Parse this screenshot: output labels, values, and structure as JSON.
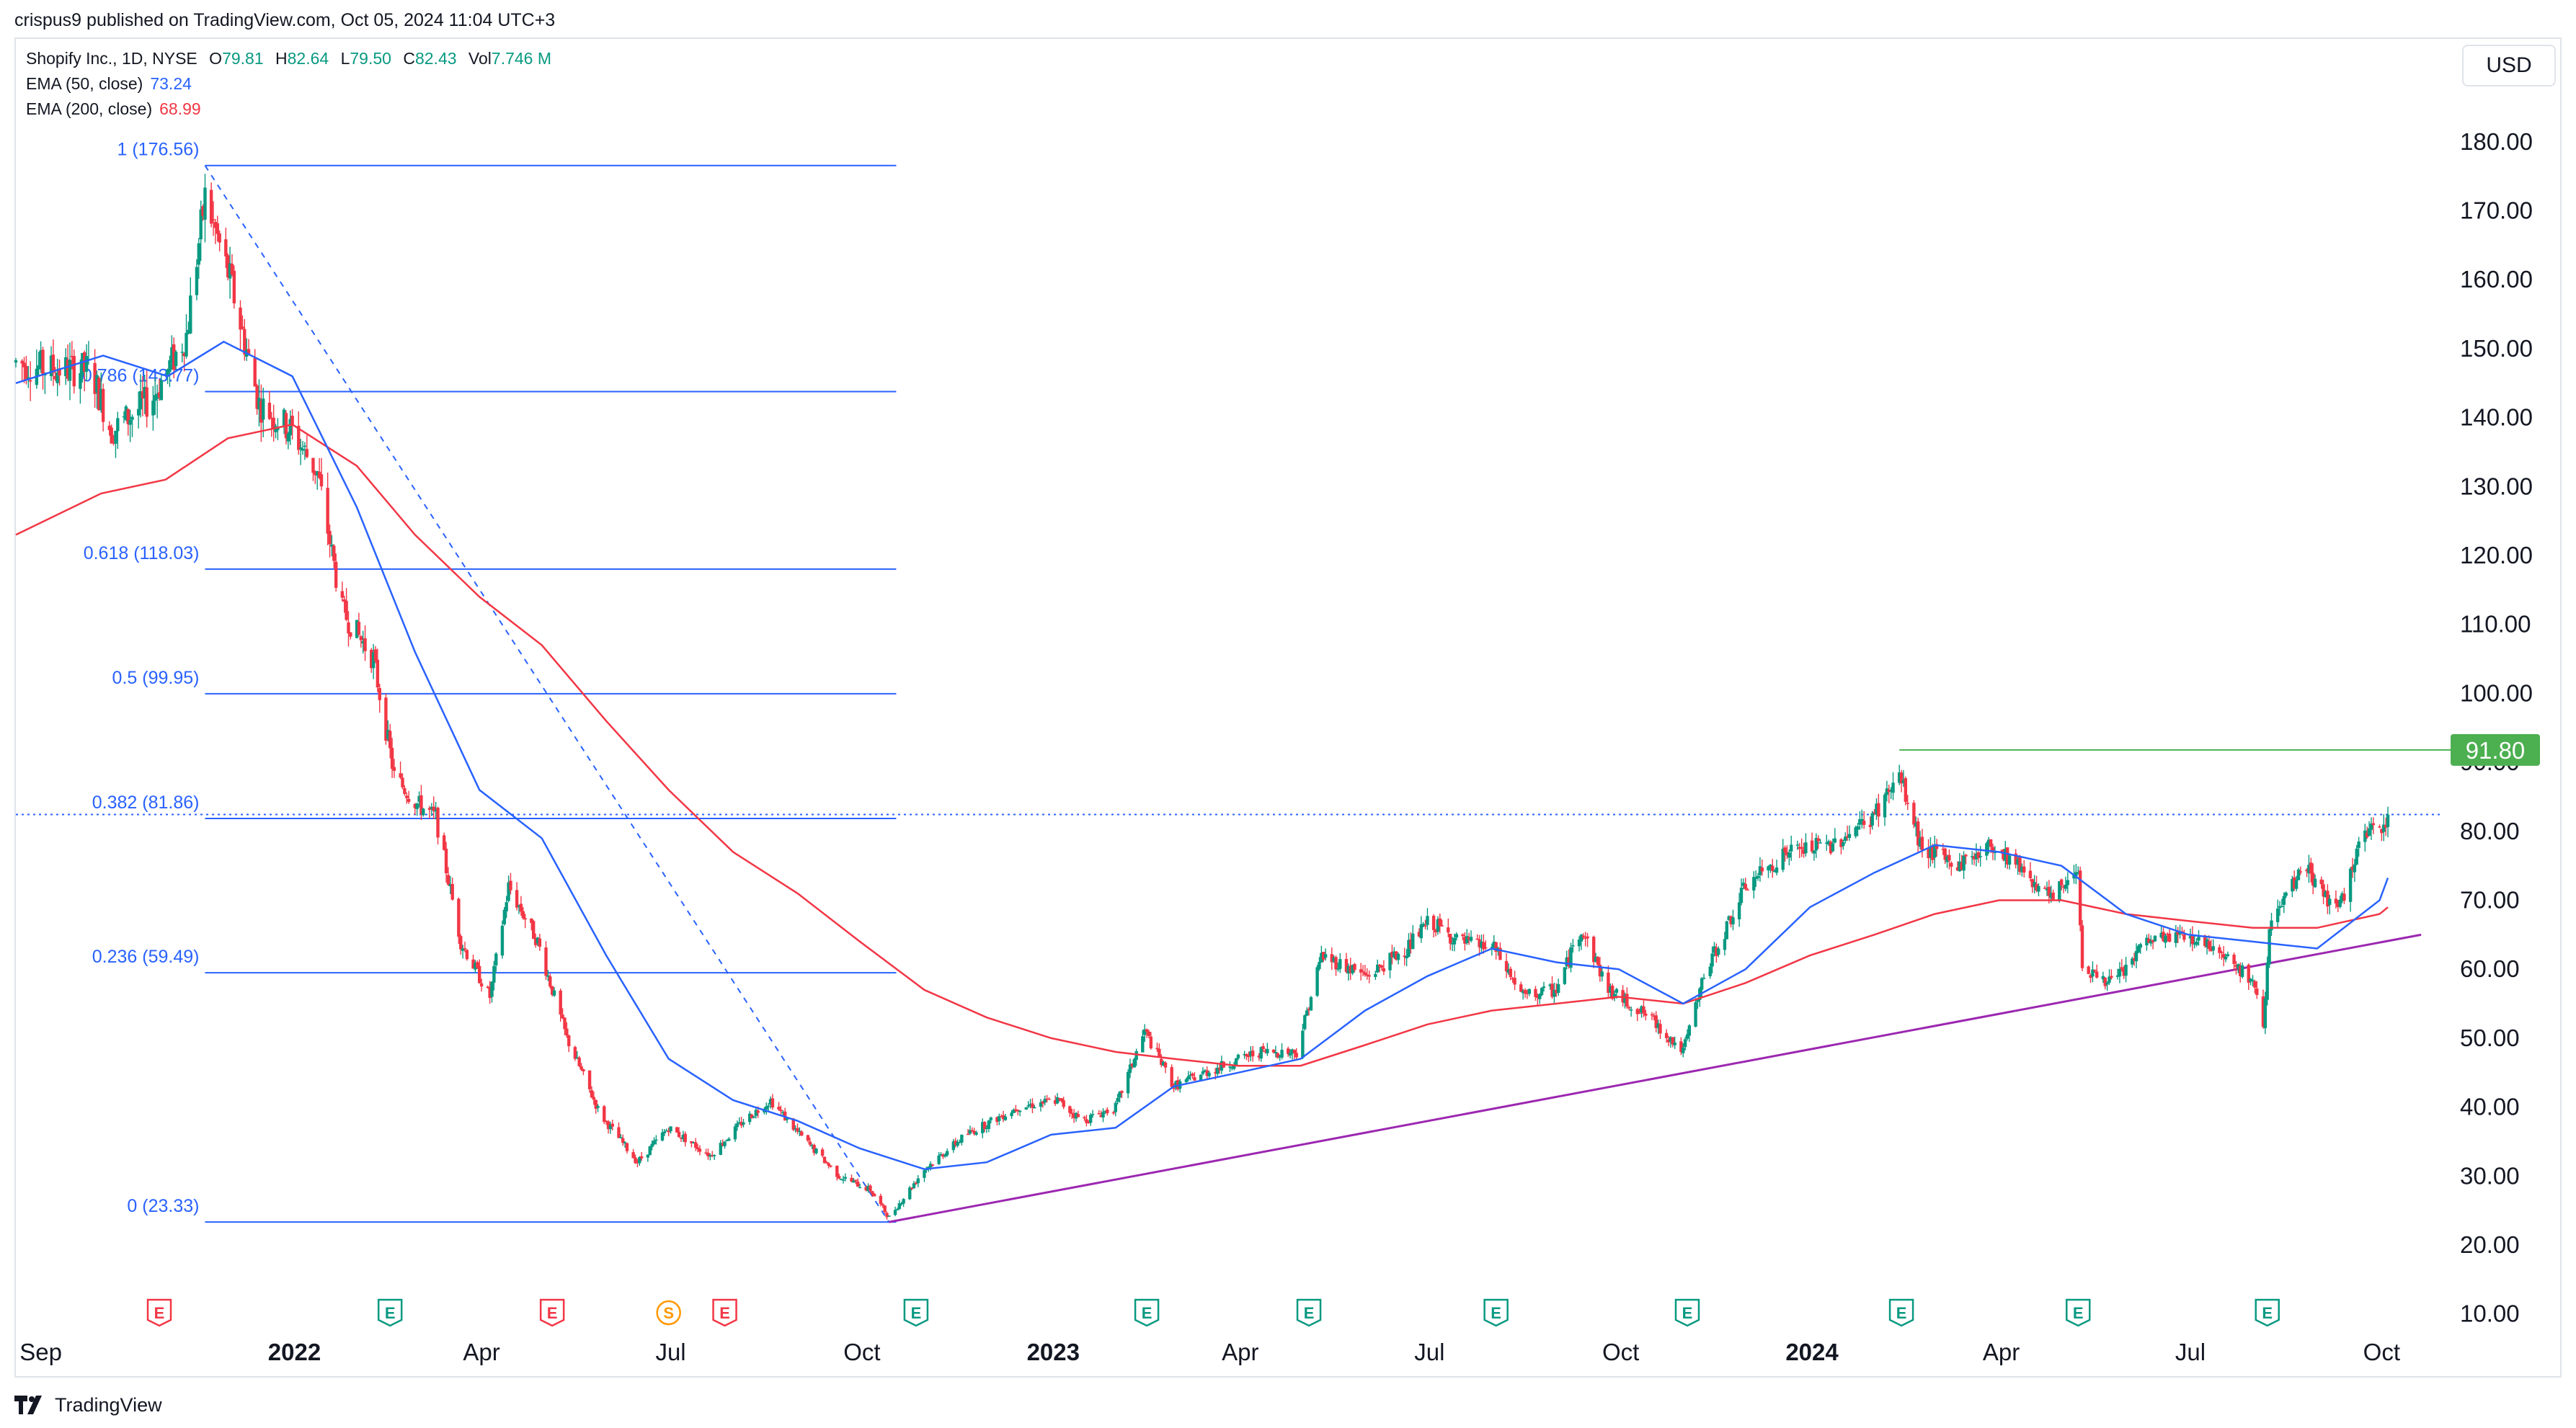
{
  "header": {
    "published": "crispus9 published on TradingView.com, Oct 05, 2024 11:04 UTC+3"
  },
  "legend": {
    "symbol": "Shopify Inc., 1D, NYSE",
    "ohlc": [
      {
        "k": "O",
        "v": "79.81"
      },
      {
        "k": "H",
        "v": "82.64"
      },
      {
        "k": "L",
        "v": "79.50"
      },
      {
        "k": "C",
        "v": "82.43"
      },
      {
        "k": "Vol",
        "v": "7.746 M"
      }
    ],
    "ema50": {
      "label": "EMA (50, close)",
      "value": "73.24"
    },
    "ema200": {
      "label": "EMA (200, close)",
      "value": "68.99"
    }
  },
  "currency_button": "USD",
  "footer": {
    "brand": "TradingView"
  },
  "colors": {
    "candle_up": "#089981",
    "candle_down": "#f23645",
    "ema50": "#2962ff",
    "ema200": "#f23645",
    "fib": "#2962ff",
    "trendline": "#9c27b0",
    "resistance": "#4caf50",
    "price_label_bg": "#4caf50"
  },
  "chart_data": {
    "type": "candlestick",
    "x_range": [
      "2021-08-20",
      "2024-10-30"
    ],
    "ylim": [
      10,
      190
    ],
    "y_ticks": [
      "180.00",
      "170.00",
      "160.00",
      "150.00",
      "140.00",
      "130.00",
      "120.00",
      "110.00",
      "100.00",
      "90.00",
      "80.00",
      "70.00",
      "60.00",
      "50.00",
      "40.00",
      "30.00",
      "20.00",
      "10.00"
    ],
    "x_ticks": [
      {
        "date": "2021-09-01",
        "label": "Sep",
        "bold": false
      },
      {
        "date": "2022-01-01",
        "label": "2022",
        "bold": true
      },
      {
        "date": "2022-04-01",
        "label": "Apr",
        "bold": false
      },
      {
        "date": "2022-07-01",
        "label": "Jul",
        "bold": false
      },
      {
        "date": "2022-10-01",
        "label": "Oct",
        "bold": false
      },
      {
        "date": "2023-01-01",
        "label": "2023",
        "bold": true
      },
      {
        "date": "2023-04-01",
        "label": "Apr",
        "bold": false
      },
      {
        "date": "2023-07-01",
        "label": "Jul",
        "bold": false
      },
      {
        "date": "2023-10-01",
        "label": "Oct",
        "bold": false
      },
      {
        "date": "2024-01-01",
        "label": "2024",
        "bold": true
      },
      {
        "date": "2024-04-01",
        "label": "Apr",
        "bold": false
      },
      {
        "date": "2024-07-01",
        "label": "Jul",
        "bold": false
      },
      {
        "date": "2024-10-01",
        "label": "Oct",
        "bold": false
      }
    ],
    "price_path": [
      [
        "2021-08-20",
        148
      ],
      [
        "2021-09-05",
        147
      ],
      [
        "2021-09-25",
        147
      ],
      [
        "2021-10-05",
        138
      ],
      [
        "2021-10-25",
        143
      ],
      [
        "2021-11-10",
        152
      ],
      [
        "2021-11-19",
        172
      ],
      [
        "2021-12-01",
        160
      ],
      [
        "2021-12-15",
        142
      ],
      [
        "2021-12-31",
        138
      ],
      [
        "2022-01-12",
        132
      ],
      [
        "2022-01-24",
        112
      ],
      [
        "2022-02-08",
        105
      ],
      [
        "2022-02-18",
        88
      ],
      [
        "2022-03-01",
        84
      ],
      [
        "2022-03-10",
        82
      ],
      [
        "2022-03-22",
        64
      ],
      [
        "2022-04-05",
        56
      ],
      [
        "2022-04-14",
        72
      ],
      [
        "2022-04-28",
        64
      ],
      [
        "2022-05-12",
        50
      ],
      [
        "2022-05-28",
        39
      ],
      [
        "2022-06-15",
        32
      ],
      [
        "2022-06-30",
        37
      ],
      [
        "2022-07-20",
        33
      ],
      [
        "2022-08-05",
        38
      ],
      [
        "2022-08-18",
        41
      ],
      [
        "2022-09-01",
        36
      ],
      [
        "2022-09-20",
        30
      ],
      [
        "2022-10-05",
        28
      ],
      [
        "2022-10-14",
        24
      ],
      [
        "2022-10-31",
        31
      ],
      [
        "2022-11-20",
        36
      ],
      [
        "2022-12-15",
        40
      ],
      [
        "2023-01-03",
        41
      ],
      [
        "2023-01-15",
        38
      ],
      [
        "2023-01-31",
        40
      ],
      [
        "2023-02-14",
        51
      ],
      [
        "2023-02-28",
        43
      ],
      [
        "2023-03-15",
        45
      ],
      [
        "2023-04-10",
        48
      ],
      [
        "2023-04-28",
        48
      ],
      [
        "2023-05-10",
        62
      ],
      [
        "2023-06-01",
        59
      ],
      [
        "2023-06-20",
        63
      ],
      [
        "2023-07-01",
        67
      ],
      [
        "2023-07-15",
        64
      ],
      [
        "2023-08-01",
        63
      ],
      [
        "2023-08-15",
        56
      ],
      [
        "2023-08-31",
        57
      ],
      [
        "2023-09-12",
        66
      ],
      [
        "2023-09-25",
        57
      ],
      [
        "2023-10-15",
        53
      ],
      [
        "2023-10-31",
        48
      ],
      [
        "2023-11-10",
        59
      ],
      [
        "2023-11-30",
        72
      ],
      [
        "2023-12-20",
        77
      ],
      [
        "2024-01-10",
        78
      ],
      [
        "2024-01-30",
        82
      ],
      [
        "2024-02-12",
        88
      ],
      [
        "2024-02-22",
        78
      ],
      [
        "2024-03-10",
        75
      ],
      [
        "2024-03-28",
        78
      ],
      [
        "2024-04-10",
        75
      ],
      [
        "2024-04-25",
        70
      ],
      [
        "2024-05-08",
        75
      ],
      [
        "2024-05-10",
        60
      ],
      [
        "2024-05-25",
        58
      ],
      [
        "2024-06-10",
        64
      ],
      [
        "2024-06-28",
        65
      ],
      [
        "2024-07-15",
        63
      ],
      [
        "2024-07-31",
        58
      ],
      [
        "2024-08-05",
        52
      ],
      [
        "2024-08-08",
        66
      ],
      [
        "2024-08-25",
        75
      ],
      [
        "2024-09-10",
        68
      ],
      [
        "2024-09-20",
        78
      ],
      [
        "2024-10-04",
        82
      ]
    ],
    "ema50_path": [
      [
        "2021-08-20",
        145
      ],
      [
        "2021-10-01",
        149
      ],
      [
        "2021-11-01",
        146
      ],
      [
        "2021-11-28",
        151
      ],
      [
        "2021-12-31",
        146
      ],
      [
        "2022-01-31",
        127
      ],
      [
        "2022-02-28",
        106
      ],
      [
        "2022-03-31",
        86
      ],
      [
        "2022-04-30",
        79
      ],
      [
        "2022-05-31",
        62
      ],
      [
        "2022-06-30",
        47
      ],
      [
        "2022-07-31",
        41
      ],
      [
        "2022-08-31",
        38
      ],
      [
        "2022-09-30",
        34
      ],
      [
        "2022-10-31",
        31
      ],
      [
        "2022-11-30",
        32
      ],
      [
        "2022-12-31",
        36
      ],
      [
        "2023-01-31",
        37
      ],
      [
        "2023-02-28",
        43
      ],
      [
        "2023-03-31",
        45
      ],
      [
        "2023-04-30",
        47
      ],
      [
        "2023-05-31",
        54
      ],
      [
        "2023-06-30",
        59
      ],
      [
        "2023-07-31",
        63
      ],
      [
        "2023-08-31",
        61
      ],
      [
        "2023-09-30",
        60
      ],
      [
        "2023-10-31",
        55
      ],
      [
        "2023-11-30",
        60
      ],
      [
        "2023-12-31",
        69
      ],
      [
        "2024-01-31",
        74
      ],
      [
        "2024-02-29",
        78
      ],
      [
        "2024-03-31",
        77
      ],
      [
        "2024-04-30",
        75
      ],
      [
        "2024-05-31",
        68
      ],
      [
        "2024-06-30",
        65
      ],
      [
        "2024-07-31",
        64
      ],
      [
        "2024-08-31",
        63
      ],
      [
        "2024-09-30",
        70
      ],
      [
        "2024-10-04",
        73.24
      ]
    ],
    "ema200_path": [
      [
        "2021-08-20",
        123
      ],
      [
        "2021-09-30",
        129
      ],
      [
        "2021-10-31",
        131
      ],
      [
        "2021-11-30",
        137
      ],
      [
        "2021-12-31",
        139
      ],
      [
        "2022-01-31",
        133
      ],
      [
        "2022-02-28",
        123
      ],
      [
        "2022-03-31",
        114
      ],
      [
        "2022-04-30",
        107
      ],
      [
        "2022-05-31",
        96
      ],
      [
        "2022-06-30",
        86
      ],
      [
        "2022-07-31",
        77
      ],
      [
        "2022-08-31",
        71
      ],
      [
        "2022-09-30",
        64
      ],
      [
        "2022-10-31",
        57
      ],
      [
        "2022-11-30",
        53
      ],
      [
        "2022-12-31",
        50
      ],
      [
        "2023-01-31",
        48
      ],
      [
        "2023-02-28",
        47
      ],
      [
        "2023-03-31",
        46
      ],
      [
        "2023-04-30",
        46
      ],
      [
        "2023-05-31",
        49
      ],
      [
        "2023-06-30",
        52
      ],
      [
        "2023-07-31",
        54
      ],
      [
        "2023-08-31",
        55
      ],
      [
        "2023-09-30",
        56
      ],
      [
        "2023-10-31",
        55
      ],
      [
        "2023-11-30",
        58
      ],
      [
        "2023-12-31",
        62
      ],
      [
        "2024-01-31",
        65
      ],
      [
        "2024-02-29",
        68
      ],
      [
        "2024-03-31",
        70
      ],
      [
        "2024-04-30",
        70
      ],
      [
        "2024-05-31",
        68
      ],
      [
        "2024-06-30",
        67
      ],
      [
        "2024-07-31",
        66
      ],
      [
        "2024-08-31",
        66
      ],
      [
        "2024-09-30",
        68
      ],
      [
        "2024-10-04",
        68.99
      ]
    ],
    "fibonacci": {
      "x_start": "2021-11-19",
      "x_end": "2022-10-14",
      "levels": [
        {
          "label": "1 (176.56)",
          "value": 176.56
        },
        {
          "label": "0.786 (143.77)",
          "value": 143.77
        },
        {
          "label": "0.618 (118.03)",
          "value": 118.03
        },
        {
          "label": "0.5 (99.95)",
          "value": 99.95
        },
        {
          "label": "0.382 (81.86)",
          "value": 81.86
        },
        {
          "label": "0.236 (59.49)",
          "value": 59.49
        },
        {
          "label": "0 (23.33)",
          "value": 23.33
        }
      ]
    },
    "fib_diagonal": [
      [
        "2021-11-19",
        176.56
      ],
      [
        "2022-10-14",
        23.33
      ]
    ],
    "trendline": [
      [
        "2022-10-14",
        23.33
      ],
      [
        "2024-10-20",
        65
      ]
    ],
    "resistance": {
      "value": 91.8,
      "x_start": "2024-02-12",
      "label": "91.80"
    },
    "last_price_line": 82.43,
    "earnings_markers": [
      {
        "date": "2021-10-28",
        "label": "E",
        "color": "#f23645"
      },
      {
        "date": "2022-02-16",
        "label": "E",
        "color": "#089981"
      },
      {
        "date": "2022-05-05",
        "label": "E",
        "color": "#f23645"
      },
      {
        "date": "2022-06-30",
        "label": "S",
        "color": "#ff9800"
      },
      {
        "date": "2022-07-27",
        "label": "E",
        "color": "#f23645"
      },
      {
        "date": "2022-10-27",
        "label": "E",
        "color": "#089981"
      },
      {
        "date": "2023-02-15",
        "label": "E",
        "color": "#089981"
      },
      {
        "date": "2023-05-04",
        "label": "E",
        "color": "#089981"
      },
      {
        "date": "2023-08-02",
        "label": "E",
        "color": "#089981"
      },
      {
        "date": "2023-11-02",
        "label": "E",
        "color": "#089981"
      },
      {
        "date": "2024-02-13",
        "label": "E",
        "color": "#089981"
      },
      {
        "date": "2024-05-08",
        "label": "E",
        "color": "#089981"
      },
      {
        "date": "2024-08-07",
        "label": "E",
        "color": "#089981"
      }
    ]
  }
}
